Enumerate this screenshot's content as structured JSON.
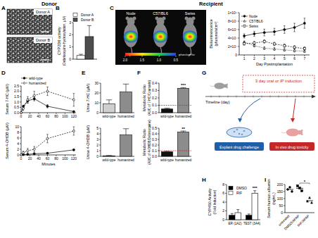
{
  "headers": {
    "donor": "Donor",
    "recipient": "Recipient"
  },
  "panel_letters": [
    "A",
    "B",
    "C",
    "D",
    "E",
    "F",
    "G",
    "H",
    "I"
  ],
  "micrographs": {
    "labels": [
      "Donor A",
      "Donor B"
    ]
  },
  "imaging": {
    "labels": [
      "Nude",
      "C57/BL6",
      "Swiss"
    ],
    "colorbar": {
      "ticks": [
        {
          "value": 2,
          "label": "2.0"
        },
        1.5,
        {
          "value": 1,
          "label": "1.0"
        },
        0.5
      ],
      "unit": "p/sec/cm²/sr"
    }
  },
  "diagram": {
    "timeline": "Timeline (day)",
    "induction": "3 day oral or IP induction",
    "explant": "Explant drug challenge",
    "in_vivo": "In vivo drug toxicity"
  },
  "chart_data": [
    {
      "type": "bar",
      "y_label": "CYP2D6 activity",
      "y_sublabel": "(Debrisoquine hydroxylation, µM)",
      "categories": [
        null
      ],
      "series": [
        {
          "name": "Donor A",
          "color": "#ffffff",
          "values": [
            0.3
          ],
          "errors": [
            0.1
          ]
        },
        {
          "name": "Donor B",
          "color": "#4d4d4d",
          "values": [
            1.85
          ],
          "errors": [
            0.9
          ]
        }
      ],
      "ylim": [
        0,
        3
      ],
      "yticks": [
        0,
        1,
        2,
        3
      ],
      "legend": "top"
    },
    {
      "type": "line",
      "x_label": "Day Postimplantation",
      "y_label": "Bioluminescence",
      "y_sublabel": "(photons/s/cm²)",
      "x": [
        1,
        2,
        3,
        4,
        5,
        6,
        7
      ],
      "series": [
        {
          "name": "Nude",
          "color": "#000000",
          "marker": "circle",
          "line_style": "solid",
          "values": [
            45000000,
            50000000,
            53000000,
            55000000,
            60000000,
            65000000,
            75000000
          ],
          "errors": [
            5000000,
            6000000,
            8000000,
            8000000,
            9000000,
            10000000,
            12000000
          ]
        },
        {
          "name": "C57/BL6",
          "color": "#ffffff",
          "marker": "triangle",
          "line_style": "dotted",
          "values": [
            30000000,
            22000000,
            16000000,
            14000000,
            12000000,
            10000000,
            9000000
          ],
          "errors": [
            3000000,
            3000000,
            3000000,
            3000000,
            3000000,
            3000000,
            3000000
          ]
        },
        {
          "name": "Swiss",
          "color": "#ffffff",
          "marker": "square",
          "line_style": "dashed",
          "values": [
            27000000,
            28000000,
            32000000,
            26000000,
            22000000,
            18000000,
            15000000
          ],
          "errors": [
            4000000,
            4000000,
            4000000,
            4000000,
            4000000,
            4000000,
            4000000
          ]
        }
      ],
      "xlim": [
        0.5,
        7.5
      ],
      "xticks": [
        1,
        2,
        3,
        4,
        5,
        6,
        7
      ],
      "ylim": [
        0,
        100000000
      ],
      "yticks": [
        0,
        {
          "value": 20000000,
          "label": "2×10⁷"
        },
        {
          "value": 40000000,
          "label": "4×10⁷"
        },
        {
          "value": 60000000,
          "label": "6×10⁷"
        },
        {
          "value": 80000000,
          "label": "8×10⁷"
        },
        {
          "value": 100000000,
          "label": "1×10⁸"
        }
      ],
      "legend": "top-left"
    },
    {
      "type": "line",
      "y_label": "Serum 7-HC (µM)",
      "x": [
        0,
        5,
        15,
        30,
        60,
        120
      ],
      "series": [
        {
          "name": "wild-type",
          "color": "#000000",
          "marker": "circle",
          "line_style": "solid",
          "values": [
            0,
            0.6,
            1.1,
            1.3,
            0.6,
            0.1
          ],
          "errors": [
            0,
            0.1,
            0.2,
            0.2,
            0.15,
            0.05
          ]
        },
        {
          "name": "humanized",
          "color": "#ffffff",
          "marker": "circle",
          "line_style": "dashed",
          "values": [
            0,
            0.4,
            1.2,
            1.6,
            2.0,
            1.2
          ],
          "errors": [
            0,
            0.2,
            0.3,
            0.4,
            0.4,
            0.6
          ]
        }
      ],
      "xlim": [
        0,
        125
      ],
      "xticks": [
        0,
        20,
        40,
        60,
        80,
        100,
        120
      ],
      "ylim": [
        0,
        2.5
      ],
      "yticks": [
        {
          "value": 0,
          "label": "0.0"
        },
        0.5,
        {
          "value": 1,
          "label": "1.0"
        },
        1.5,
        {
          "value": 2,
          "label": "2.0"
        },
        2.5
      ],
      "legend": "top"
    },
    {
      "type": "line",
      "y_label": "Serum 4-OHDB (µM)",
      "x_label": "Minutes",
      "x": [
        0,
        5,
        15,
        30,
        60,
        120
      ],
      "series": [
        {
          "color": "#000000",
          "marker": "circle",
          "line_style": "solid",
          "values": [
            0,
            0.1,
            0.2,
            0.4,
            0.6,
            1.8
          ],
          "errors": [
            0,
            0.05,
            0.1,
            0.1,
            0.2,
            0.3
          ]
        },
        {
          "color": "#ffffff",
          "marker": "circle",
          "line_style": "dashed",
          "values": [
            0,
            0.8,
            1.5,
            2.0,
            5.8,
            8.5
          ],
          "errors": [
            0,
            0.5,
            0.8,
            1.0,
            1.5,
            1.5
          ]
        }
      ],
      "xlim": [
        0,
        125
      ],
      "xticks": [
        0,
        20,
        40,
        60,
        80,
        100,
        120
      ],
      "ylim": [
        0,
        10
      ],
      "yticks": [
        0,
        2,
        4,
        6,
        8,
        10
      ]
    },
    {
      "type": "bar",
      "y_label": "Urine 7-HC (µM)",
      "categories": [
        "wild-type",
        "humanized"
      ],
      "values": [
        9,
        21
      ],
      "errors": [
        4,
        8
      ],
      "colors": [
        "#cfcfcf",
        "#8c8c8c"
      ],
      "ylim": [
        0,
        30
      ],
      "yticks": [
        0,
        10,
        20,
        30
      ]
    },
    {
      "type": "bar",
      "y_label": "Urine 4-OHDB (µM)",
      "categories": [
        "wild-type",
        "humanized"
      ],
      "values": [
        0.1,
        3.8
      ],
      "errors": [
        0.05,
        1.1
      ],
      "colors": [
        "#cfcfcf",
        "#8c8c8c"
      ],
      "ylim": [
        0,
        5
      ],
      "yticks": [
        0,
        1,
        2,
        3,
        4,
        5
      ]
    },
    {
      "type": "bar",
      "y_label": "Metabolic Ratio",
      "y_sublabel": "(AUC of 7-HC/Coumarin)",
      "categories": [
        "wild-type",
        "humanized"
      ],
      "values": [
        0.05,
        0.33
      ],
      "errors": [
        0.01,
        0.01
      ],
      "colors": [
        "#111111",
        "#8c8c8c"
      ],
      "ylim": [
        0,
        0.4
      ],
      "yticks": [
        {
          "value": 0,
          "label": "0.0"
        },
        0.1,
        0.2,
        0.3,
        0.4
      ],
      "reference_line": 0.1,
      "annotation": "***"
    },
    {
      "type": "bar",
      "y_label": "Metabolic Ratio",
      "y_sublabel": "(AUC of 4-OHDB/Debrisoquine)",
      "categories": [
        "wild-type",
        "humanized"
      ],
      "values": [
        0.08,
        0.43
      ],
      "errors": [
        0.01,
        0.02
      ],
      "colors": [
        "#111111",
        "#8c8c8c"
      ],
      "ylim": [
        0,
        0.5
      ],
      "yticks": [
        {
          "value": 0,
          "label": "0.0"
        },
        0.1,
        0.2,
        0.3,
        0.4,
        0.5
      ],
      "reference_line": 0.1,
      "annotation": "**"
    },
    {
      "type": "bar",
      "y_label": "CYP450 Activity",
      "y_sublabel": "(Fold Induction)",
      "categories": [
        "ER (1A2)",
        "TEST (3A4)"
      ],
      "series": [
        {
          "name": "DMSO",
          "color": "#000000",
          "values": [
            1,
            1
          ],
          "errors": [
            0.4,
            0.3
          ]
        },
        {
          "name": "RIF",
          "color": "#ffffff",
          "values": [
            1.6,
            6.0
          ],
          "errors": [
            0.7,
            0.6
          ]
        }
      ],
      "ylim": [
        0,
        8
      ],
      "yticks": [
        0,
        2,
        4,
        6,
        8
      ],
      "legend": "top-left",
      "annotation": "***"
    },
    {
      "type": "dot",
      "y_label": "Serum human albumin",
      "y_sublabel": "(ng/mL)",
      "categories": [
        "untreated",
        "DMSO/APAP",
        "RIF/APAP"
      ],
      "series": [
        {
          "marker": "circle",
          "color": "#000000",
          "values": [
            165,
            180,
            150
          ],
          "mean": 165
        },
        {
          "marker": "square",
          "color": "#000000",
          "values": [
            190,
            175,
            155
          ],
          "mean": 173
        },
        {
          "marker": "triangle",
          "color": "#000000",
          "values": [
            80,
            105,
            70
          ],
          "mean": 85
        }
      ],
      "ylim": [
        0,
        200
      ],
      "yticks": [
        0,
        50,
        100,
        150,
        200
      ],
      "annotation": "*"
    }
  ]
}
